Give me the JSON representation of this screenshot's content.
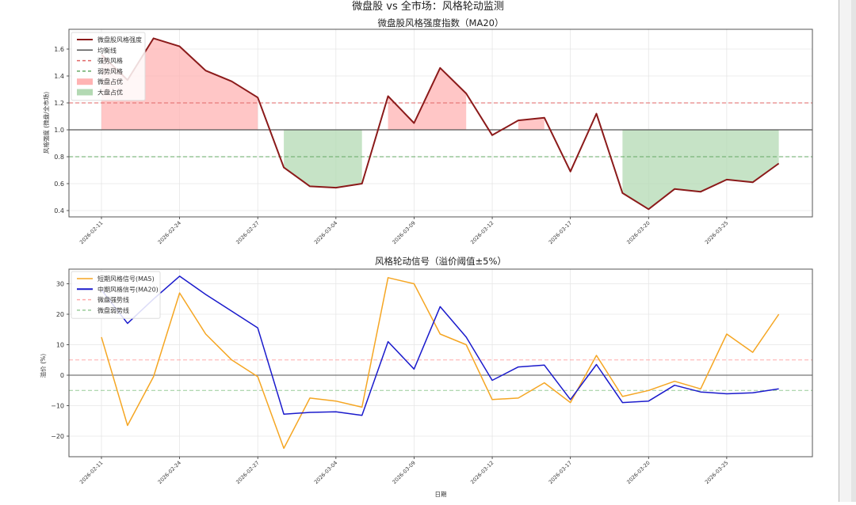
{
  "figure": {
    "suptitle": "微盘股 vs 全市场：风格轮动监测",
    "xlabel": "日期"
  },
  "chart_data": [
    {
      "type": "line",
      "title": "微盘股风格强度指数（MA20）",
      "xlabel": "",
      "ylabel": "风格强度 (微盘/全市场)",
      "ylim": [
        0.35,
        1.72
      ],
      "yticks": [
        0.4,
        0.6,
        0.8,
        1.0,
        1.2,
        1.4,
        1.6
      ],
      "ytick_labels": [
        "0.4",
        "0.6",
        "0.8",
        "1.0",
        "1.2",
        "1.4",
        "1.6"
      ],
      "xtick_labels": [
        "2026-02-11",
        "2026-02-24",
        "2026-02-27",
        "2026-03-04",
        "2026-03-09",
        "2026-03-12",
        "2026-03-17",
        "2026-03-20",
        "2026-03-25"
      ],
      "xtick_index": [
        0,
        3,
        6,
        9,
        12,
        15,
        18,
        21,
        24
      ],
      "grid": true,
      "legend_position": "upper left",
      "series": [
        {
          "name": "微盘股风格强度",
          "color": "#8b1a1a",
          "style": "solid",
          "values": [
            1.56,
            1.37,
            1.68,
            1.62,
            1.44,
            1.36,
            1.24,
            0.72,
            0.58,
            0.57,
            0.6,
            1.25,
            1.05,
            1.46,
            1.27,
            0.96,
            1.07,
            1.09,
            0.69,
            1.12,
            0.53,
            0.41,
            0.56,
            0.54,
            0.63,
            0.61,
            0.75
          ]
        }
      ],
      "hlines": [
        {
          "name": "均衡线",
          "y": 1.0,
          "color": "#555555",
          "style": "solid"
        },
        {
          "name": "强势风格",
          "y": 1.2,
          "color": "#e06666",
          "style": "dashed"
        },
        {
          "name": "弱势风格",
          "y": 0.8,
          "color": "#66aa66",
          "style": "dashed"
        }
      ],
      "fills": [
        {
          "name": "微盘占优",
          "color": "#ffb3b3",
          "ranges": [
            [
              0,
              6
            ],
            [
              11,
              14
            ],
            [
              16,
              17
            ]
          ]
        },
        {
          "name": "大盘占优",
          "color": "#b3d9b3",
          "ranges": [
            [
              7,
              10
            ],
            [
              20,
              26
            ]
          ]
        }
      ],
      "legend": [
        "微盘股风格强度",
        "均衡线",
        "强势风格",
        "弱势风格",
        "微盘占优",
        "大盘占优"
      ]
    },
    {
      "type": "line",
      "title": "风格轮动信号（溢价阈值±5%）",
      "xlabel": "日期",
      "ylabel": "溢价 (%)",
      "ylim": [
        -27,
        34
      ],
      "yticks": [
        -20,
        -10,
        0,
        10,
        20,
        30
      ],
      "ytick_labels": [
        "−20",
        "−10",
        "0",
        "10",
        "20",
        "30"
      ],
      "xtick_labels": [
        "2026-02-11",
        "2026-02-24",
        "2026-02-27",
        "2026-03-04",
        "2026-03-09",
        "2026-03-12",
        "2026-03-17",
        "2026-03-20",
        "2026-03-25"
      ],
      "xtick_index": [
        0,
        3,
        6,
        9,
        12,
        15,
        18,
        21,
        24
      ],
      "grid": true,
      "legend_position": "upper left",
      "series": [
        {
          "name": "短期风格信号(MA5)",
          "color": "#f5a623",
          "style": "solid",
          "values": [
            12.5,
            -16.5,
            -0.5,
            27,
            13.5,
            5,
            -0.5,
            -24,
            -7.5,
            -8.5,
            -10.5,
            32,
            30,
            13.5,
            10,
            -8,
            -7.5,
            -2.5,
            -9,
            6.5,
            -7,
            -5,
            -2,
            -4.5,
            13.5,
            7.5,
            20
          ]
        },
        {
          "name": "中期风格信号(MA20)",
          "color": "#1a1acc",
          "style": "solid",
          "values": [
            28,
            17,
            25,
            32.5,
            26.5,
            21,
            15.5,
            -12.8,
            -12.2,
            -12,
            -13.2,
            11,
            2,
            22.5,
            12.5,
            -1.7,
            2.7,
            3.3,
            -8,
            3.5,
            -9,
            -8.5,
            -3.3,
            -5.5,
            -6.1,
            -5.8,
            -4.5
          ]
        }
      ],
      "hlines": [
        {
          "name": "零轴",
          "y": 0,
          "color": "#777777",
          "style": "solid"
        },
        {
          "name": "微盘强势线",
          "y": 5,
          "color": "#ffaaaa",
          "style": "dashed"
        },
        {
          "name": "微盘弱势线",
          "y": -5,
          "color": "#99cc99",
          "style": "dashed"
        }
      ],
      "legend": [
        "短期风格信号(MA5)",
        "中期风格信号(MA20)",
        "微盘强势线",
        "微盘弱势线"
      ]
    }
  ]
}
